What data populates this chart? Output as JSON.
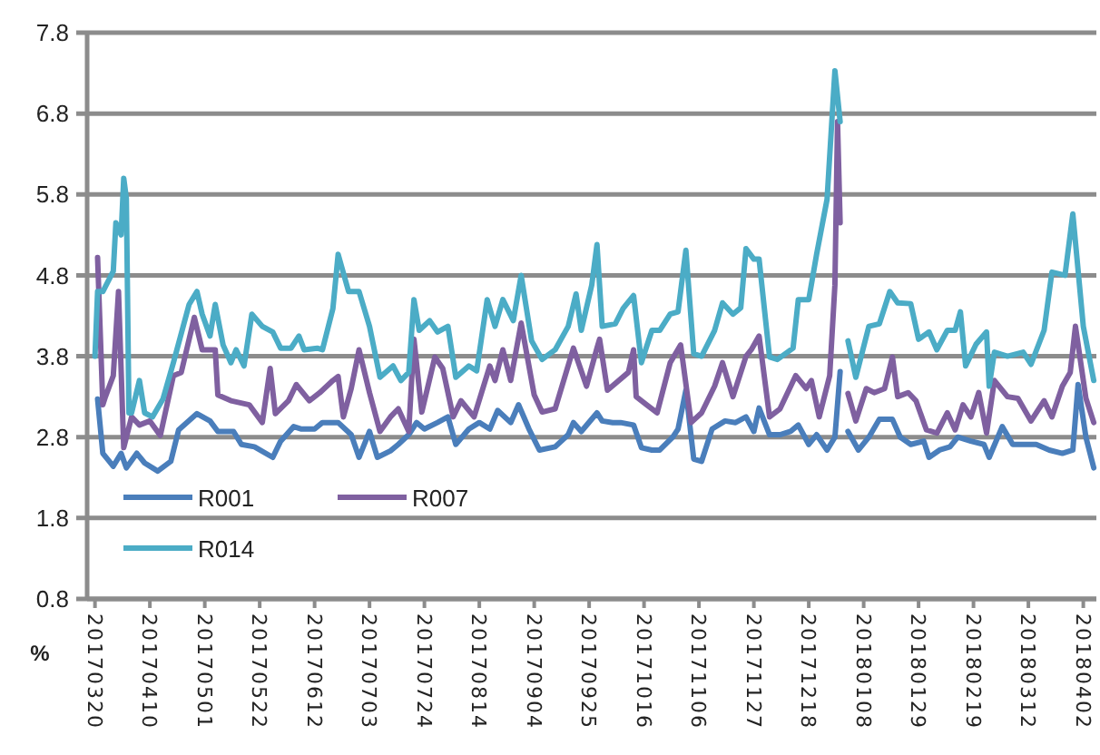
{
  "chart_data": {
    "type": "line",
    "ylabel": "%",
    "xlim": [
      "2017-03-17",
      "2018-04-07"
    ],
    "ylim": [
      0.8,
      7.8
    ],
    "yticks": [
      0.8,
      1.8,
      2.8,
      3.8,
      4.8,
      5.8,
      6.8,
      7.8
    ],
    "xticks": [
      {
        "value": "2017-03-20",
        "label": "20170320"
      },
      {
        "value": "2017-04-10",
        "label": "20170410"
      },
      {
        "value": "2017-05-01",
        "label": "20170501"
      },
      {
        "value": "2017-05-22",
        "label": "20170522"
      },
      {
        "value": "2017-06-12",
        "label": "20170612"
      },
      {
        "value": "2017-07-03",
        "label": "20170703"
      },
      {
        "value": "2017-07-24",
        "label": "20170724"
      },
      {
        "value": "2017-08-14",
        "label": "20170814"
      },
      {
        "value": "2017-09-04",
        "label": "20170904"
      },
      {
        "value": "2017-09-25",
        "label": "20170925"
      },
      {
        "value": "2017-10-16",
        "label": "20171016"
      },
      {
        "value": "2017-11-06",
        "label": "20171106"
      },
      {
        "value": "2017-11-27",
        "label": "20171127"
      },
      {
        "value": "2017-12-18",
        "label": "20171218"
      },
      {
        "value": "2018-01-08",
        "label": "20180108"
      },
      {
        "value": "2018-01-29",
        "label": "20180129"
      },
      {
        "value": "2018-02-19",
        "label": "20180219"
      },
      {
        "value": "2018-03-12",
        "label": "20180312"
      },
      {
        "value": "2018-04-02",
        "label": "20180402"
      }
    ],
    "grid": "y",
    "legend": "bottom left",
    "marker": "none",
    "line_style": "solid",
    "series": [
      {
        "name": "R001",
        "color": "#4a7ebb",
        "x": [
          "2017-03-21",
          "2017-03-23",
          "2017-03-27",
          "2017-03-30",
          "2017-04-01",
          "2017-04-05",
          "2017-04-08",
          "2017-04-13",
          "2017-04-18",
          "2017-04-21",
          "2017-04-28",
          "2017-05-03",
          "2017-05-06",
          "2017-05-12",
          "2017-05-15",
          "2017-05-20",
          "2017-05-27",
          "2017-05-30",
          "2017-06-04",
          "2017-06-07",
          "2017-06-12",
          "2017-06-15",
          "2017-06-21",
          "2017-06-26",
          "2017-06-29",
          "2017-07-03",
          "2017-07-06",
          "2017-07-11",
          "2017-07-14",
          "2017-07-18",
          "2017-07-21",
          "2017-07-24",
          "2017-07-29",
          "2017-08-02",
          "2017-08-05",
          "2017-08-10",
          "2017-08-14",
          "2017-08-18",
          "2017-08-21",
          "2017-08-26",
          "2017-08-29",
          "2017-09-02",
          "2017-09-06",
          "2017-09-12",
          "2017-09-17",
          "2017-09-19",
          "2017-09-22",
          "2017-09-28",
          "2017-09-30",
          "2017-10-04",
          "2017-10-07",
          "2017-10-12",
          "2017-10-15",
          "2017-10-19",
          "2017-10-22",
          "2017-10-27",
          "2017-10-29",
          "2017-11-01",
          "2017-11-04",
          "2017-11-07",
          "2017-11-11",
          "2017-11-16",
          "2017-11-20",
          "2017-11-24",
          "2017-11-27",
          "2017-11-29",
          "2017-12-03",
          "2017-12-07",
          "2017-12-11",
          "2017-12-14",
          "2017-12-18",
          "2017-12-21",
          "2017-12-25",
          "2017-12-28",
          "2017-12-30",
          "2017-12-31",
          "2018-01-02",
          "2018-01-06",
          "2018-01-10",
          "2018-01-14",
          "2018-01-19",
          "2018-01-22",
          "2018-01-26",
          "2018-01-31",
          "2018-02-02",
          "2018-02-06",
          "2018-02-10",
          "2018-02-13",
          "2018-02-18",
          "2018-02-23",
          "2018-02-25",
          "2018-03-02",
          "2018-03-06",
          "2018-03-11",
          "2018-03-15",
          "2018-03-20",
          "2018-03-25",
          "2018-03-29",
          "2018-03-31",
          "2018-04-03",
          "2018-04-06"
        ],
        "values": [
          3.27,
          2.6,
          2.44,
          2.6,
          2.42,
          2.6,
          2.48,
          2.38,
          2.5,
          2.89,
          3.09,
          3.0,
          2.87,
          2.87,
          2.71,
          2.68,
          2.55,
          2.75,
          2.93,
          2.9,
          2.9,
          2.98,
          2.98,
          2.83,
          2.55,
          2.87,
          2.55,
          2.63,
          2.71,
          2.83,
          2.98,
          2.9,
          2.98,
          3.05,
          2.71,
          2.9,
          2.98,
          2.9,
          3.13,
          2.98,
          3.2,
          2.9,
          2.64,
          2.68,
          2.83,
          2.98,
          2.87,
          3.1,
          3.0,
          2.98,
          2.98,
          2.95,
          2.67,
          2.64,
          2.64,
          2.8,
          2.9,
          3.38,
          2.53,
          2.5,
          2.9,
          3.0,
          2.98,
          3.05,
          2.87,
          3.16,
          2.83,
          2.83,
          2.87,
          2.95,
          2.71,
          2.83,
          2.64,
          2.8,
          3.61,
          null,
          2.87,
          2.64,
          2.8,
          3.02,
          3.02,
          2.8,
          2.71,
          2.75,
          2.55,
          2.64,
          2.68,
          2.8,
          2.75,
          2.71,
          2.55,
          2.93,
          2.71,
          2.71,
          2.71,
          2.64,
          2.6,
          2.64,
          3.45,
          2.8,
          2.42
        ]
      },
      {
        "name": "R007",
        "color": "#7f60a0",
        "x": [
          "2017-03-21",
          "2017-03-23",
          "2017-03-24",
          "2017-03-27",
          "2017-03-29",
          "2017-03-31",
          "2017-04-03",
          "2017-04-06",
          "2017-04-10",
          "2017-04-14",
          "2017-04-19",
          "2017-04-22",
          "2017-04-27",
          "2017-04-30",
          "2017-05-05",
          "2017-05-06",
          "2017-05-11",
          "2017-05-18",
          "2017-05-23",
          "2017-05-26",
          "2017-05-28",
          "2017-06-02",
          "2017-06-05",
          "2017-06-10",
          "2017-06-14",
          "2017-06-19",
          "2017-06-21",
          "2017-06-23",
          "2017-06-26",
          "2017-06-29",
          "2017-07-03",
          "2017-07-07",
          "2017-07-11",
          "2017-07-14",
          "2017-07-18",
          "2017-07-20",
          "2017-07-23",
          "2017-07-28",
          "2017-07-31",
          "2017-08-04",
          "2017-08-07",
          "2017-08-12",
          "2017-08-18",
          "2017-08-20",
          "2017-08-23",
          "2017-08-26",
          "2017-08-30",
          "2017-09-04",
          "2017-09-07",
          "2017-09-12",
          "2017-09-19",
          "2017-09-24",
          "2017-09-28",
          "2017-09-29",
          "2017-10-02",
          "2017-10-10",
          "2017-10-12",
          "2017-10-13",
          "2017-10-17",
          "2017-10-21",
          "2017-10-26",
          "2017-10-30",
          "2017-11-03",
          "2017-11-07",
          "2017-11-12",
          "2017-11-15",
          "2017-11-19",
          "2017-11-24",
          "2017-11-26",
          "2017-11-29",
          "2017-12-03",
          "2017-12-07",
          "2017-12-13",
          "2017-12-17",
          "2017-12-19",
          "2017-12-22",
          "2017-12-26",
          "2017-12-28",
          "2017-12-29",
          "2017-12-30",
          "2017-12-31",
          "2018-01-02",
          "2018-01-05",
          "2018-01-09",
          "2018-01-12",
          "2018-01-16",
          "2018-01-19",
          "2018-01-21",
          "2018-01-25",
          "2018-01-28",
          "2018-02-01",
          "2018-02-05",
          "2018-02-09",
          "2018-02-12",
          "2018-02-15",
          "2018-02-18",
          "2018-02-21",
          "2018-02-24",
          "2018-02-27",
          "2018-03-04",
          "2018-03-08",
          "2018-03-13",
          "2018-03-18",
          "2018-03-21",
          "2018-03-25",
          "2018-03-28",
          "2018-03-30",
          "2018-04-03",
          "2018-04-06"
        ],
        "values": [
          5.02,
          3.2,
          3.3,
          3.56,
          4.6,
          2.67,
          3.05,
          2.95,
          3.0,
          2.82,
          3.56,
          3.6,
          4.28,
          3.88,
          3.88,
          3.32,
          3.25,
          3.2,
          2.98,
          3.65,
          3.09,
          3.25,
          3.45,
          3.25,
          3.35,
          3.5,
          3.55,
          3.05,
          3.4,
          3.88,
          3.35,
          2.87,
          3.05,
          3.15,
          2.87,
          4.01,
          3.11,
          3.79,
          3.65,
          3.05,
          3.25,
          3.05,
          3.68,
          3.5,
          3.88,
          3.5,
          4.21,
          3.32,
          3.11,
          3.15,
          3.9,
          3.43,
          3.9,
          4.01,
          3.38,
          3.6,
          3.88,
          3.3,
          3.2,
          3.1,
          3.72,
          3.94,
          2.98,
          3.1,
          3.43,
          3.72,
          3.3,
          3.8,
          3.88,
          4.05,
          3.05,
          3.15,
          3.56,
          3.4,
          3.5,
          3.05,
          3.56,
          4.68,
          6.7,
          5.45,
          null,
          3.34,
          3.0,
          3.4,
          3.35,
          3.4,
          3.79,
          3.3,
          3.35,
          3.25,
          2.89,
          2.85,
          3.1,
          2.89,
          3.2,
          3.05,
          3.35,
          2.85,
          3.5,
          3.3,
          3.28,
          3.0,
          3.25,
          3.05,
          3.43,
          3.6,
          4.17,
          3.28,
          2.98
        ]
      },
      {
        "name": "R014",
        "color": "#4bacc6",
        "x": [
          "2017-03-20",
          "2017-03-21",
          "2017-03-23",
          "2017-03-27",
          "2017-03-28",
          "2017-03-30",
          "2017-03-31",
          "2017-04-01",
          "2017-04-02",
          "2017-04-03",
          "2017-04-06",
          "2017-04-08",
          "2017-04-11",
          "2017-04-15",
          "2017-04-19",
          "2017-04-25",
          "2017-04-28",
          "2017-04-30",
          "2017-05-03",
          "2017-05-05",
          "2017-05-08",
          "2017-05-11",
          "2017-05-13",
          "2017-05-16",
          "2017-05-19",
          "2017-05-23",
          "2017-05-27",
          "2017-05-30",
          "2017-06-03",
          "2017-06-06",
          "2017-06-08",
          "2017-06-13",
          "2017-06-15",
          "2017-06-19",
          "2017-06-21",
          "2017-06-25",
          "2017-06-29",
          "2017-07-03",
          "2017-07-07",
          "2017-07-12",
          "2017-07-15",
          "2017-07-18",
          "2017-07-20",
          "2017-07-22",
          "2017-07-26",
          "2017-07-29",
          "2017-08-02",
          "2017-08-05",
          "2017-08-10",
          "2017-08-13",
          "2017-08-17",
          "2017-08-20",
          "2017-08-23",
          "2017-08-27",
          "2017-08-30",
          "2017-09-03",
          "2017-09-07",
          "2017-09-12",
          "2017-09-17",
          "2017-09-20",
          "2017-09-22",
          "2017-09-26",
          "2017-09-28",
          "2017-09-30",
          "2017-10-05",
          "2017-10-08",
          "2017-10-12",
          "2017-10-15",
          "2017-10-19",
          "2017-10-22",
          "2017-10-26",
          "2017-10-29",
          "2017-11-01",
          "2017-11-04",
          "2017-11-07",
          "2017-11-12",
          "2017-11-15",
          "2017-11-19",
          "2017-11-22",
          "2017-11-24",
          "2017-11-27",
          "2017-11-29",
          "2017-12-03",
          "2017-12-06",
          "2017-12-12",
          "2017-12-14",
          "2017-12-18",
          "2017-12-21",
          "2017-12-25",
          "2017-12-28",
          "2017-12-30",
          "2017-12-31",
          "2018-01-02",
          "2018-01-05",
          "2018-01-10",
          "2018-01-14",
          "2018-01-18",
          "2018-01-21",
          "2018-01-26",
          "2018-01-29",
          "2018-02-02",
          "2018-02-05",
          "2018-02-09",
          "2018-02-12",
          "2018-02-14",
          "2018-02-16",
          "2018-02-20",
          "2018-02-24",
          "2018-02-25",
          "2018-02-27",
          "2018-03-04",
          "2018-03-10",
          "2018-03-13",
          "2018-03-18",
          "2018-03-21",
          "2018-03-26",
          "2018-03-29",
          "2018-04-02",
          "2018-04-06"
        ],
        "values": [
          3.8,
          4.6,
          4.6,
          4.85,
          5.45,
          5.3,
          6.0,
          5.75,
          3.1,
          3.1,
          3.5,
          3.1,
          3.05,
          3.27,
          3.72,
          4.44,
          4.6,
          4.32,
          4.05,
          4.44,
          3.94,
          3.72,
          3.88,
          3.68,
          4.32,
          4.17,
          4.1,
          3.9,
          3.9,
          4.05,
          3.88,
          3.9,
          3.88,
          4.39,
          5.06,
          4.6,
          4.6,
          4.17,
          3.54,
          3.68,
          3.5,
          3.6,
          4.5,
          4.12,
          4.24,
          4.1,
          4.17,
          3.54,
          3.68,
          3.62,
          4.5,
          4.17,
          4.5,
          4.24,
          4.8,
          3.99,
          3.76,
          3.88,
          4.17,
          4.57,
          4.12,
          4.68,
          5.18,
          4.17,
          4.2,
          4.39,
          4.55,
          3.72,
          4.12,
          4.12,
          4.32,
          4.35,
          5.11,
          3.83,
          3.8,
          4.12,
          4.46,
          4.32,
          4.4,
          5.13,
          5.0,
          5.0,
          3.79,
          3.76,
          3.9,
          4.5,
          4.5,
          5.06,
          5.74,
          7.33,
          6.7,
          null,
          3.99,
          3.54,
          4.17,
          4.2,
          4.6,
          4.46,
          4.45,
          4.01,
          4.1,
          3.88,
          4.12,
          4.12,
          4.35,
          3.68,
          3.95,
          4.1,
          3.43,
          3.85,
          3.8,
          3.85,
          3.7,
          4.12,
          4.84,
          4.8,
          5.56,
          4.17,
          3.5
        ]
      }
    ]
  }
}
